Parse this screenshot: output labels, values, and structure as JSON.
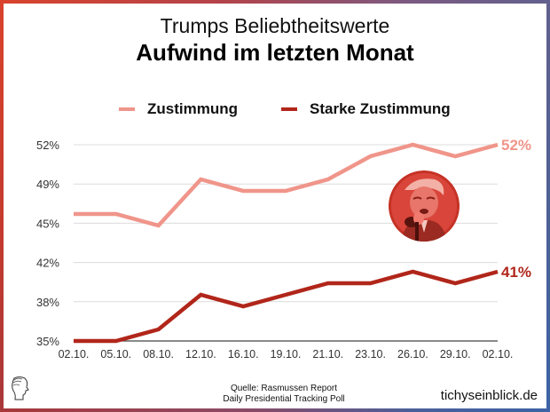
{
  "header": {
    "title": "Trumps Beliebtheitswerte",
    "subtitle": "Aufwind im letzten Monat"
  },
  "legend": [
    {
      "label": "Zustimmung",
      "color": "#f0958a"
    },
    {
      "label": "Starke Zustimmung",
      "color": "#b1261a"
    }
  ],
  "footer": {
    "source_line1": "Quelle: Rasmussen Report",
    "source_line2": "Daily Presidential Tracking Poll",
    "brand": "tichyseinblick.de"
  },
  "photo": {
    "description": "portrait-photo-red-tinted"
  },
  "chart_data": {
    "type": "line",
    "title": "Trumps Beliebtheitswerte",
    "subtitle": "Aufwind im letzten Monat",
    "xlabel": "",
    "ylabel": "",
    "categories": [
      "02.10.",
      "05.10.",
      "08.10.",
      "12.10.",
      "16.10.",
      "19.10.",
      "21.10.",
      "23.10.",
      "26.10.",
      "29.10.",
      "02.10."
    ],
    "y_ticks": [
      "35%",
      "38%",
      "42%",
      "45%",
      "49%",
      "52%"
    ],
    "ylim": [
      35,
      52
    ],
    "grid": true,
    "legend_position": "top",
    "series": [
      {
        "name": "Zustimmung",
        "color": "#f0958a",
        "values": [
          46,
          46,
          45,
          49,
          48,
          48,
          49,
          51,
          52,
          51,
          52
        ],
        "end_label": "52%"
      },
      {
        "name": "Starke Zustimmung",
        "color": "#b1261a",
        "values": [
          35,
          35,
          36,
          39,
          38,
          39,
          40,
          40,
          41,
          40,
          41
        ],
        "end_label": "41%"
      }
    ]
  }
}
